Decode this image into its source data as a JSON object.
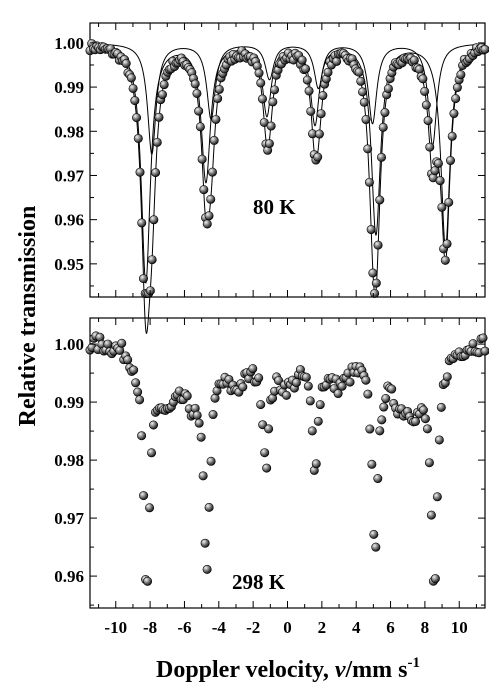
{
  "chart_data": [
    {
      "type": "scatter",
      "panel": "top",
      "annotation": "80 K",
      "xlim": [
        -11.5,
        11.5
      ],
      "ylim": [
        0.9425,
        1.0045
      ],
      "x_ticks": [
        -10,
        -8,
        -6,
        -4,
        -2,
        0,
        2,
        4,
        6,
        8,
        10
      ],
      "y_ticks": [
        0.95,
        0.96,
        0.97,
        0.98,
        0.99,
        1.0
      ],
      "y_tick_labels": [
        "0.95",
        "0.96",
        "0.97",
        "0.98",
        "0.99",
        "1.00"
      ],
      "fit_lines": true,
      "baseline": 1.0,
      "sites": [
        {
          "lines": [
            [
              -8.25,
              0.054,
              0.32
            ],
            [
              -4.75,
              0.031,
              0.32
            ],
            [
              -1.2,
              0.016,
              0.3
            ],
            [
              1.6,
              0.018,
              0.3
            ],
            [
              5.15,
              0.043,
              0.32
            ],
            [
              9.2,
              0.046,
              0.32
            ]
          ]
        },
        {
          "lines": [
            [
              -7.9,
              0.025,
              0.3
            ],
            [
              -4.45,
              0.017,
              0.3
            ],
            [
              -1.05,
              0.008,
              0.3
            ],
            [
              1.8,
              0.01,
              0.3
            ],
            [
              4.95,
              0.018,
              0.3
            ],
            [
              8.45,
              0.023,
              0.3
            ]
          ]
        }
      ]
    },
    {
      "type": "scatter",
      "panel": "bottom",
      "annotation": "298 K",
      "xlim": [
        -11.5,
        11.5
      ],
      "ylim": [
        0.9545,
        1.0045
      ],
      "x_ticks": [
        -10,
        -8,
        -6,
        -4,
        -2,
        0,
        2,
        4,
        6,
        8,
        10
      ],
      "x_tick_labels": [
        "-10",
        "-8",
        "-6",
        "-4",
        "-2",
        "0",
        "2",
        "4",
        "6",
        "8",
        "10"
      ],
      "y_ticks": [
        0.96,
        0.97,
        0.98,
        0.99,
        1.0
      ],
      "y_tick_labels": [
        "0.96",
        "0.97",
        "0.98",
        "0.99",
        "1.00"
      ],
      "baseline": 1.001,
      "sites": [
        {
          "lines": [
            [
              -8.2,
              0.041,
              0.22
            ],
            [
              -4.7,
              0.033,
              0.22
            ],
            [
              -1.25,
              0.017,
              0.22
            ],
            [
              1.6,
              0.018,
              0.22
            ],
            [
              5.1,
              0.032,
              0.22
            ],
            [
              8.55,
              0.041,
              0.22
            ]
          ]
        },
        {
          "lines": [
            [
              -7.0,
              0.009,
              0.8
            ],
            [
              -5.5,
              0.007,
              0.8
            ],
            [
              -3.0,
              0.006,
              0.9
            ],
            [
              0.0,
              0.006,
              0.9
            ],
            [
              3.0,
              0.006,
              0.9
            ],
            [
              6.5,
              0.007,
              0.8
            ],
            [
              7.5,
              0.008,
              0.8
            ]
          ]
        }
      ]
    }
  ],
  "axis_titles": {
    "ylabel": "Relative transmission",
    "xlabel_main": "Doppler velocity, ",
    "xlabel_var": "v",
    "xlabel_unit": "/mm s",
    "xlabel_sup": "-1"
  }
}
